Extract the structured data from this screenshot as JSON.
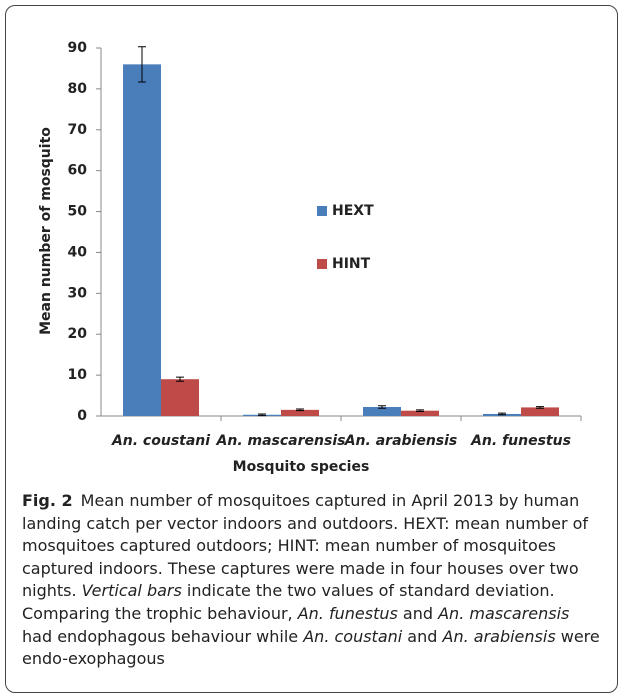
{
  "chart_data": {
    "type": "bar",
    "y_label": "Mean number of mosquito",
    "x_label": "Mosquito species",
    "categories": [
      "An. coustani",
      "An. mascarensis",
      "An. arabiensis",
      "An. funestus"
    ],
    "category_italic": true,
    "series": [
      {
        "name": "HEXT",
        "color": "#4a7ebb",
        "values": [
          86,
          0.3,
          2.2,
          0.5
        ],
        "errors": [
          4.3,
          0.2,
          0.3,
          0.2
        ]
      },
      {
        "name": "HINT",
        "color": "#be4b48",
        "values": [
          9,
          1.5,
          1.3,
          2.1
        ],
        "errors": [
          0.5,
          0.2,
          0.2,
          0.2
        ]
      }
    ],
    "ylim": [
      0,
      90
    ],
    "yticks": [
      0,
      10,
      20,
      30,
      40,
      50,
      60,
      70,
      80,
      90
    ],
    "grid": false
  },
  "caption": {
    "label": "Fig. 2",
    "segments": [
      {
        "text": "Mean number of mosquitoes captured in April 2013 by human landing catch per vector indoors and outdoors. HEXT: mean number of mosquitoes captured outdoors; HINT: mean number of mosquitoes captured indoors. These captures were made in four houses over two nights. ",
        "italic": false
      },
      {
        "text": "Vertical bars",
        "italic": true
      },
      {
        "text": " indicate the two values of standard deviation. Comparing the trophic behaviour, ",
        "italic": false
      },
      {
        "text": "An. funestus",
        "italic": true
      },
      {
        "text": " and ",
        "italic": false
      },
      {
        "text": "An. mascarensis",
        "italic": true
      },
      {
        "text": " had endophagous behaviour while ",
        "italic": false
      },
      {
        "text": "An. coustani",
        "italic": true
      },
      {
        "text": " and ",
        "italic": false
      },
      {
        "text": "An. arabiensis",
        "italic": true
      },
      {
        "text": " were endo-exophagous",
        "italic": false
      }
    ]
  }
}
